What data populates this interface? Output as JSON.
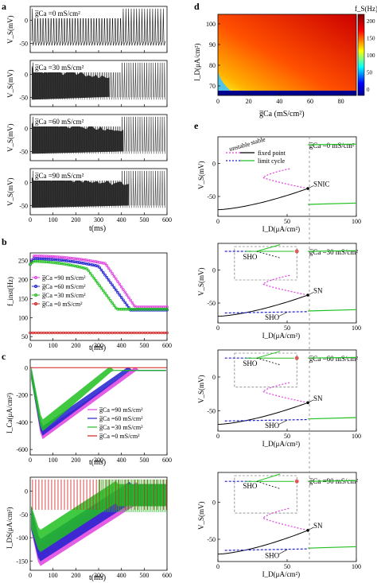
{
  "panel_labels": {
    "a": "a",
    "b": "b",
    "c": "c",
    "d": "d",
    "e": "e"
  },
  "panel_a": {
    "ylabel": "V_S(mV)",
    "xlabel": "t(ms)",
    "legends": [
      "g̅Ca =0 mS/cm²",
      "g̅Ca =30 mS/cm²",
      "g̅Ca =60 mS/cm²",
      "g̅Ca =90 mS/cm²"
    ],
    "yticks": [
      "0",
      "-50"
    ],
    "xticks": [
      "0",
      "100",
      "200",
      "300",
      "400",
      "500",
      "600"
    ]
  },
  "panel_b": {
    "ylabel": "f_inst(Hz)",
    "xlabel": "t(ms)",
    "yticks": [
      "250",
      "200",
      "150",
      "100",
      "50"
    ],
    "xticks": [
      "0",
      "100",
      "200",
      "300",
      "400",
      "500",
      "600"
    ],
    "legend": [
      "g̅Ca =90 mS/cm²",
      "g̅Ca =60 mS/cm²",
      "g̅Ca =30 mS/cm²",
      "g̅Ca =0 mS/cm²"
    ]
  },
  "panel_c_top": {
    "ylabel": "I_Ca(μA/cm²)",
    "xlabel": "t(ms)",
    "yticks": [
      "0",
      "-200",
      "-400",
      "-600"
    ],
    "xticks": [
      "0",
      "100",
      "200",
      "300",
      "400",
      "500",
      "600"
    ],
    "legend": [
      "g̅Ca =90 mS/cm²",
      "g̅Ca =60 mS/cm²",
      "g̅Ca =30 mS/cm²",
      "g̅Ca =0 mS/cm²"
    ]
  },
  "panel_c_bot": {
    "ylabel": "I_DS(μA/cm²)",
    "xlabel": "t(ms)",
    "yticks": [
      "0",
      "-50",
      "-100",
      "-150"
    ],
    "xticks": [
      "0",
      "100",
      "200",
      "300",
      "400",
      "500",
      "600"
    ]
  },
  "panel_d": {
    "ylabel": "I_D(μA/cm²)",
    "xlabel": "g̅Ca (mS/cm²)",
    "yticks": [
      "100",
      "90",
      "80",
      "70"
    ],
    "xticks": [
      "0",
      "20",
      "40",
      "60",
      "80"
    ],
    "colorbar_label": "f_S(Hz)",
    "colorbar_ticks": [
      "200",
      "150",
      "100",
      "50",
      "0"
    ]
  },
  "panel_e": {
    "ylabel": "V_S(mV)",
    "xlabel": "I_D(μA/cm²)",
    "yticks": [
      "0",
      "-50"
    ],
    "xticks": [
      "0",
      "50",
      "100"
    ],
    "legend_unstable": "unstable",
    "legend_stable": "stable",
    "legend_fixed": "fixed point",
    "legend_limit": "limit cycle",
    "sub": [
      {
        "gca": "g̅Ca =0 mS/cm²",
        "label": "SNIC"
      },
      {
        "gca": "g̅Ca =30 mS/cm²",
        "label": "SN",
        "sho": "SHO"
      },
      {
        "gca": "g̅Ca =60 mS/cm²",
        "label": "SN",
        "sho": "SHO"
      },
      {
        "gca": "g̅Ca =90 mS/cm²",
        "label": "SN",
        "sho": "SHO"
      }
    ]
  },
  "colors": {
    "magenta": "#e040e0",
    "blue": "#2020d0",
    "green": "#20c020",
    "red": "#d02020",
    "gray": "#555555"
  }
}
